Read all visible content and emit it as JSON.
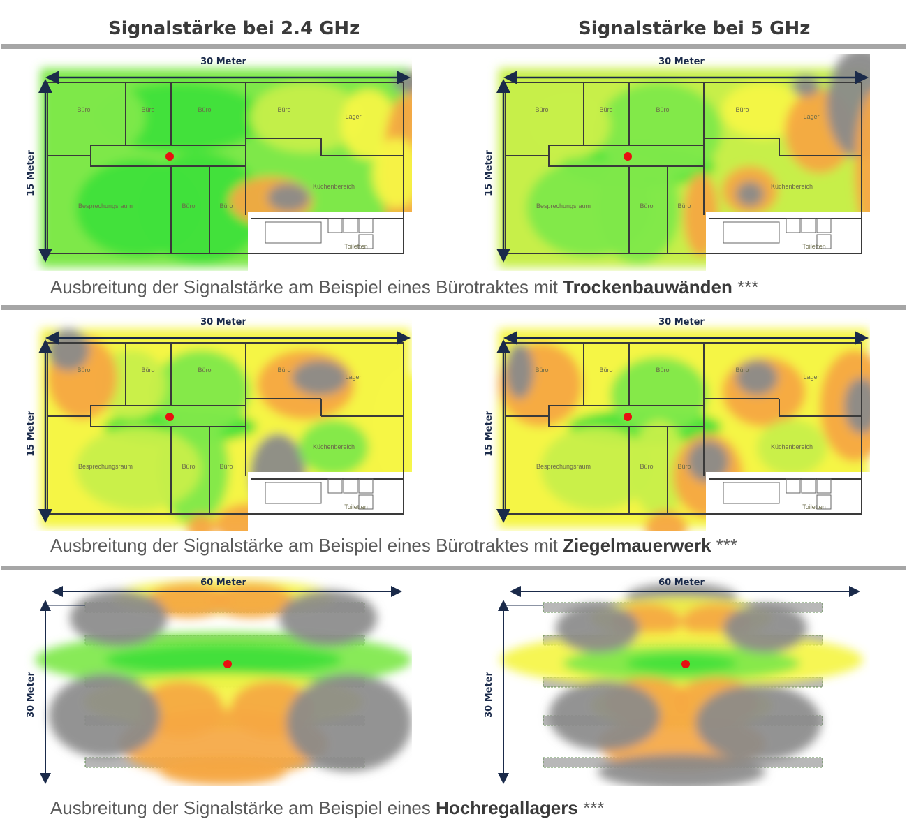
{
  "headers": {
    "left": "Signalstärke bei 2.4 GHz",
    "right": "Signalstärke bei 5 GHz"
  },
  "captions": [
    {
      "prefix": "Ausbreitung der Signalstärke am Beispiel eines Bürotraktes mit ",
      "bold": "Trockenbauwänden",
      "suffix": " ***"
    },
    {
      "prefix": "Ausbreitung der Signalstärke am Beispiel eines Bürotraktes mit ",
      "bold": "Ziegelmauerwerk",
      "suffix": " ***"
    },
    {
      "prefix": "Ausbreitung der Signalstärke am Beispiel eines ",
      "bold": "Hochregallagers",
      "suffix": " ***"
    }
  ],
  "office": {
    "width_label": "30 Meter",
    "height_label": "15 Meter",
    "rooms": {
      "buero": "Büro",
      "lager": "Lager",
      "kueche": "Küchenbereich",
      "besprechung": "Besprechungsraum",
      "toiletten": "Toiletten"
    }
  },
  "warehouse": {
    "width_label": "60 Meter",
    "height_label": "30 Meter"
  },
  "legend_colors": {
    "strong": "#3fe03a",
    "good": "#7ee84a",
    "medium": "#c7ef4a",
    "fair": "#f5f544",
    "weak": "#f5a742",
    "none": "#8a8a8a",
    "access_point": "#e81010"
  }
}
